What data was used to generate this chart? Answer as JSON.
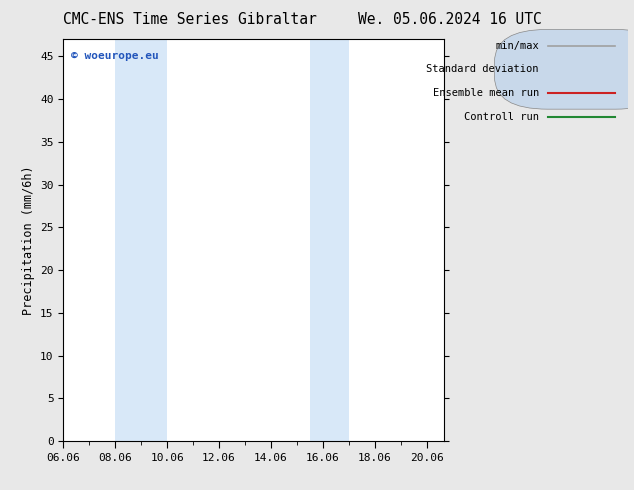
{
  "title_left": "CMC-ENS Time Series Gibraltar",
  "title_right": "We. 05.06.2024 16 UTC",
  "ylabel": "Precipitation (mm/6h)",
  "xlim_left": 0,
  "xlim_right": 14.666,
  "ylim_bottom": 0,
  "ylim_top": 47,
  "yticks": [
    0,
    5,
    10,
    15,
    20,
    25,
    30,
    35,
    40,
    45
  ],
  "xtick_labels": [
    "06.06",
    "08.06",
    "10.06",
    "12.06",
    "14.06",
    "16.06",
    "18.06",
    "20.06"
  ],
  "xtick_positions": [
    0,
    2,
    4,
    6,
    8,
    10,
    12,
    14
  ],
  "shaded_bands": [
    {
      "x_start": 2.0,
      "x_end": 4.0
    },
    {
      "x_start": 9.5,
      "x_end": 11.0
    }
  ],
  "band_color": "#d8e8f8",
  "background_color": "#e8e8e8",
  "plot_bg_color": "#ffffff",
  "watermark_text": "© woeurope.eu",
  "watermark_color": "#2255bb",
  "legend_entries": [
    {
      "label": "min/max",
      "color": "#a0a0a0",
      "lw": 1.2,
      "style": "line"
    },
    {
      "label": "Standard deviation",
      "color": "#c8d8ea",
      "lw": 5,
      "style": "bar"
    },
    {
      "label": "Ensemble mean run",
      "color": "#cc2222",
      "lw": 1.5,
      "style": "line"
    },
    {
      "label": "Controll run",
      "color": "#228833",
      "lw": 1.5,
      "style": "line"
    }
  ],
  "title_fontsize": 10.5,
  "axis_fontsize": 8.5,
  "tick_fontsize": 8,
  "legend_fontsize": 7.5
}
